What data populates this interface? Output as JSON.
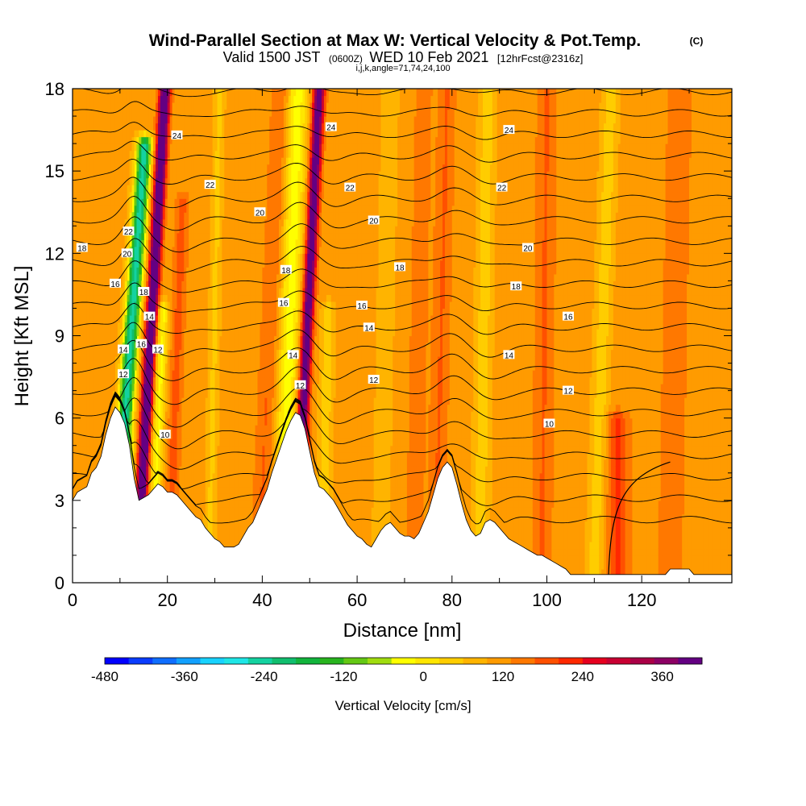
{
  "chart_data": {
    "type": "heatmap",
    "title": "Wind-Parallel Section at Max W: Vertical Velocity & Pot.Temp.",
    "title_mark": "(C)",
    "subtitle_parts": {
      "a": "Valid 1500 JST",
      "b": "(0600Z)",
      "c": "WED 10 Feb 2021",
      "d": "[12hrFcst@2316z]"
    },
    "subtitle2": "i,j,k,angle=71,74,24,100",
    "xlabel": "Distance [nm]",
    "ylabel": "Height [Kft MSL]",
    "xlim": [
      0,
      139
    ],
    "ylim": [
      0,
      18
    ],
    "x_ticks": [
      "0",
      "20",
      "40",
      "60",
      "80",
      "100",
      "120"
    ],
    "y_ticks": [
      "0",
      "3",
      "6",
      "9",
      "12",
      "15",
      "18"
    ],
    "colorbar": {
      "label": "Vertical Velocity [cm/s]",
      "min": -480,
      "max": 420,
      "step": 30,
      "tick_labels": [
        "-480",
        "-360",
        "-240",
        "-120",
        "0",
        "120",
        "240",
        "360"
      ],
      "tick_values": [
        -480,
        -360,
        -240,
        -120,
        0,
        120,
        240,
        360
      ],
      "colors": [
        "#0000ff",
        "#0a3cff",
        "#0f6eff",
        "#12a0ff",
        "#18d2ff",
        "#1ee6e6",
        "#14d2a0",
        "#10be6e",
        "#12b43c",
        "#28b41e",
        "#64c814",
        "#a0dc0f",
        "#ffff00",
        "#ffe600",
        "#ffcd00",
        "#ffb400",
        "#ff9b00",
        "#ff7800",
        "#ff5000",
        "#ff2800",
        "#e6001e",
        "#c80032",
        "#aa0046",
        "#8c0064",
        "#640082"
      ]
    },
    "terrain": [
      [
        0,
        3.0
      ],
      [
        1,
        3.3
      ],
      [
        2,
        3.4
      ],
      [
        3,
        3.5
      ],
      [
        4,
        4.0
      ],
      [
        5,
        4.2
      ],
      [
        6,
        4.6
      ],
      [
        7,
        5.4
      ],
      [
        8,
        6.0
      ],
      [
        9,
        6.4
      ],
      [
        10,
        6.2
      ],
      [
        11,
        5.8
      ],
      [
        12,
        5.0
      ],
      [
        13,
        3.8
      ],
      [
        14,
        3.0
      ],
      [
        15,
        3.1
      ],
      [
        16,
        3.2
      ],
      [
        17,
        3.4
      ],
      [
        18,
        3.6
      ],
      [
        19,
        3.5
      ],
      [
        20,
        3.3
      ],
      [
        21,
        3.3
      ],
      [
        22,
        3.2
      ],
      [
        23,
        3.0
      ],
      [
        24,
        2.8
      ],
      [
        25,
        2.6
      ],
      [
        26,
        2.4
      ],
      [
        27,
        2.3
      ],
      [
        28,
        2.0
      ],
      [
        29,
        1.8
      ],
      [
        30,
        1.6
      ],
      [
        31,
        1.5
      ],
      [
        32,
        1.3
      ],
      [
        33,
        1.3
      ],
      [
        34,
        1.3
      ],
      [
        35,
        1.4
      ],
      [
        36,
        1.7
      ],
      [
        37,
        2.0
      ],
      [
        38,
        2.2
      ],
      [
        39,
        2.6
      ],
      [
        40,
        3.0
      ],
      [
        41,
        3.4
      ],
      [
        42,
        4.0
      ],
      [
        43,
        4.5
      ],
      [
        44,
        5.0
      ],
      [
        45,
        5.5
      ],
      [
        46,
        5.9
      ],
      [
        47,
        6.2
      ],
      [
        48,
        6.1
      ],
      [
        49,
        5.6
      ],
      [
        50,
        4.8
      ],
      [
        51,
        4.0
      ],
      [
        52,
        3.5
      ],
      [
        53,
        3.4
      ],
      [
        54,
        3.2
      ],
      [
        55,
        3.0
      ],
      [
        56,
        2.7
      ],
      [
        57,
        2.4
      ],
      [
        58,
        2.1
      ],
      [
        59,
        1.9
      ],
      [
        60,
        1.7
      ],
      [
        61,
        1.6
      ],
      [
        62,
        1.4
      ],
      [
        63,
        1.3
      ],
      [
        64,
        1.6
      ],
      [
        65,
        1.9
      ],
      [
        66,
        2.1
      ],
      [
        67,
        2.2
      ],
      [
        68,
        2.0
      ],
      [
        69,
        1.8
      ],
      [
        70,
        1.7
      ],
      [
        71,
        1.7
      ],
      [
        72,
        1.6
      ],
      [
        73,
        1.8
      ],
      [
        74,
        2.2
      ],
      [
        75,
        2.6
      ],
      [
        76,
        3.2
      ],
      [
        77,
        3.8
      ],
      [
        78,
        4.2
      ],
      [
        79,
        4.4
      ],
      [
        80,
        4.2
      ],
      [
        81,
        3.6
      ],
      [
        82,
        2.9
      ],
      [
        83,
        2.3
      ],
      [
        84,
        1.9
      ],
      [
        85,
        1.7
      ],
      [
        86,
        1.8
      ],
      [
        87,
        2.2
      ],
      [
        88,
        2.3
      ],
      [
        89,
        2.2
      ],
      [
        90,
        2.0
      ],
      [
        91,
        1.8
      ],
      [
        92,
        1.6
      ],
      [
        93,
        1.5
      ],
      [
        94,
        1.4
      ],
      [
        95,
        1.3
      ],
      [
        96,
        1.2
      ],
      [
        97,
        1.1
      ],
      [
        98,
        1.0
      ],
      [
        99,
        1.0
      ],
      [
        100,
        0.9
      ],
      [
        101,
        0.8
      ],
      [
        102,
        0.7
      ],
      [
        103,
        0.6
      ],
      [
        104,
        0.5
      ],
      [
        105,
        0.3
      ],
      [
        106,
        0.3
      ],
      [
        110,
        0.3
      ],
      [
        115,
        0.3
      ],
      [
        120,
        0.3
      ],
      [
        125,
        0.3
      ],
      [
        126,
        0.5
      ],
      [
        130,
        0.5
      ],
      [
        131,
        0.3
      ],
      [
        135,
        0.3
      ],
      [
        139,
        0.3
      ]
    ],
    "w_features": [
      {
        "x0": 14.5,
        "x1": 19.5,
        "w": 330,
        "sigma": 0.8,
        "ytop": 18
      },
      {
        "x0": 11.0,
        "x1": 16.0,
        "w": -300,
        "sigma": 1.1,
        "ytop": 16
      },
      {
        "x0": 17.5,
        "x1": 21.0,
        "w": -110,
        "sigma": 0.9,
        "ytop": 10
      },
      {
        "x0": 21.0,
        "x1": 24.0,
        "w": 60,
        "sigma": 1.0,
        "ytop": 14
      },
      {
        "x0": 48.5,
        "x1": 52.0,
        "w": 290,
        "sigma": 0.8,
        "ytop": 18
      },
      {
        "x0": 45.0,
        "x1": 47.5,
        "w": -120,
        "sigma": 1.5,
        "ytop": 18
      },
      {
        "x0": 40.0,
        "x1": 44.0,
        "w": 50,
        "sigma": 1.4,
        "ytop": 18
      },
      {
        "x0": 53.0,
        "x1": 55.0,
        "w": -60,
        "sigma": 1.0,
        "ytop": 10
      },
      {
        "x0": 29.0,
        "x1": 31.0,
        "w": -50,
        "sigma": 0.8,
        "ytop": 18
      },
      {
        "x0": 65.0,
        "x1": 67.0,
        "w": -40,
        "sigma": 1.2,
        "ytop": 18
      },
      {
        "x0": 72.0,
        "x1": 74.0,
        "w": 40,
        "sigma": 1.3,
        "ytop": 18
      },
      {
        "x0": 77.0,
        "x1": 79.0,
        "w": 50,
        "sigma": 1.3,
        "ytop": 18
      },
      {
        "x0": 86.0,
        "x1": 87.5,
        "w": -60,
        "sigma": 1.2,
        "ytop": 18
      },
      {
        "x0": 99.0,
        "x1": 100.0,
        "w": 50,
        "sigma": 1.5,
        "ytop": 18
      },
      {
        "x0": 110.0,
        "x1": 113.5,
        "w": -60,
        "sigma": 1.2,
        "ytop": 18
      },
      {
        "x0": 115.0,
        "x1": 115.0,
        "w": 80,
        "sigma": 1.6,
        "ytop": 6
      },
      {
        "x0": 126.0,
        "x1": 128.0,
        "w": 40,
        "sigma": 2.0,
        "ytop": 18
      }
    ],
    "theta_levels": [
      6,
      7,
      8,
      9,
      10,
      11,
      12,
      13,
      14,
      15,
      16,
      17,
      18,
      19,
      20,
      21,
      22,
      23,
      24,
      25,
      26
    ],
    "theta_labels": [
      {
        "text": "24",
        "x": 22.0,
        "y": 16.3
      },
      {
        "text": "22",
        "x": 29.0,
        "y": 14.5
      },
      {
        "text": "20",
        "x": 39.5,
        "y": 13.5
      },
      {
        "text": "18",
        "x": 45.0,
        "y": 11.4
      },
      {
        "text": "16",
        "x": 44.5,
        "y": 10.2
      },
      {
        "text": "14",
        "x": 46.5,
        "y": 8.3
      },
      {
        "text": "12",
        "x": 48.0,
        "y": 7.2
      },
      {
        "text": "24",
        "x": 54.5,
        "y": 16.6
      },
      {
        "text": "22",
        "x": 58.5,
        "y": 14.4
      },
      {
        "text": "20",
        "x": 63.5,
        "y": 13.2
      },
      {
        "text": "18",
        "x": 69.0,
        "y": 11.5
      },
      {
        "text": "16",
        "x": 61.0,
        "y": 10.1
      },
      {
        "text": "14",
        "x": 62.5,
        "y": 9.3
      },
      {
        "text": "12",
        "x": 63.5,
        "y": 7.4
      },
      {
        "text": "24",
        "x": 92.0,
        "y": 16.5
      },
      {
        "text": "22",
        "x": 90.5,
        "y": 14.4
      },
      {
        "text": "20",
        "x": 96.0,
        "y": 12.2
      },
      {
        "text": "18",
        "x": 93.5,
        "y": 10.8
      },
      {
        "text": "16",
        "x": 104.5,
        "y": 9.7
      },
      {
        "text": "14",
        "x": 92.0,
        "y": 8.3
      },
      {
        "text": "12",
        "x": 104.5,
        "y": 7.0
      },
      {
        "text": "10",
        "x": 100.5,
        "y": 5.8
      },
      {
        "text": "18",
        "x": 2.0,
        "y": 12.2
      },
      {
        "text": "22",
        "x": 11.8,
        "y": 12.8
      },
      {
        "text": "20",
        "x": 11.5,
        "y": 12.0
      },
      {
        "text": "16",
        "x": 9.0,
        "y": 10.9
      },
      {
        "text": "18",
        "x": 15.0,
        "y": 10.6
      },
      {
        "text": "14",
        "x": 16.2,
        "y": 9.7
      },
      {
        "text": "16",
        "x": 14.5,
        "y": 8.7
      },
      {
        "text": "14",
        "x": 10.7,
        "y": 8.5
      },
      {
        "text": "12",
        "x": 18.0,
        "y": 8.5
      },
      {
        "text": "12",
        "x": 10.7,
        "y": 7.6
      },
      {
        "text": "10",
        "x": 19.5,
        "y": 5.4
      }
    ]
  }
}
